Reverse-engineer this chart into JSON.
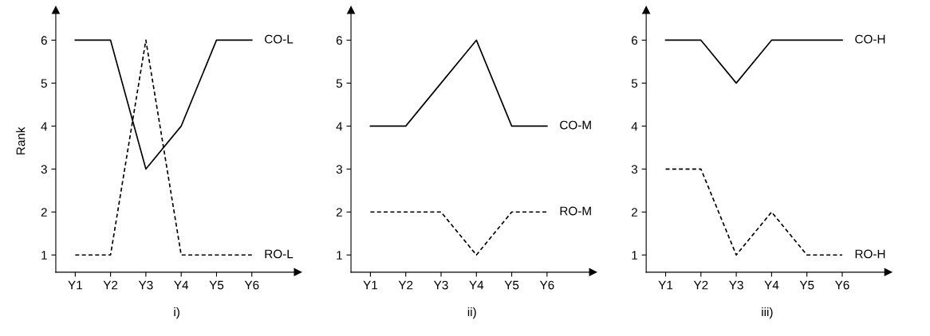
{
  "chart_data": [
    {
      "type": "line",
      "xlabel": "i)",
      "ylabel": "Rank",
      "categories": [
        "Y1",
        "Y2",
        "Y3",
        "Y4",
        "Y5",
        "Y6"
      ],
      "ylim": [
        0.6,
        6.7
      ],
      "yticks": [
        1,
        2,
        3,
        4,
        5,
        6
      ],
      "grid": false,
      "legend": false,
      "marker": "none",
      "series": [
        {
          "name": "CO-L",
          "color": "#000000",
          "line_style": "solid",
          "values": [
            6,
            6,
            3,
            4,
            6,
            6
          ]
        },
        {
          "name": "RO-L",
          "color": "#000000",
          "line_style": "dashed",
          "values": [
            1,
            1,
            6,
            1,
            1,
            1
          ]
        }
      ]
    },
    {
      "type": "line",
      "xlabel": "ii)",
      "categories": [
        "Y1",
        "Y2",
        "Y3",
        "Y4",
        "Y5",
        "Y6"
      ],
      "ylim": [
        0.6,
        6.7
      ],
      "yticks": [
        1,
        2,
        3,
        4,
        5,
        6
      ],
      "grid": false,
      "legend": false,
      "marker": "none",
      "series": [
        {
          "name": "CO-M",
          "color": "#000000",
          "line_style": "solid",
          "values": [
            4,
            4,
            5,
            6,
            4,
            4
          ]
        },
        {
          "name": "RO-M",
          "color": "#000000",
          "line_style": "dashed",
          "values": [
            2,
            2,
            2,
            1,
            2,
            2
          ]
        }
      ]
    },
    {
      "type": "line",
      "xlabel": "iii)",
      "categories": [
        "Y1",
        "Y2",
        "Y3",
        "Y4",
        "Y5",
        "Y6"
      ],
      "ylim": [
        0.6,
        6.7
      ],
      "yticks": [
        1,
        2,
        3,
        4,
        5,
        6
      ],
      "grid": false,
      "legend": false,
      "marker": "none",
      "series": [
        {
          "name": "CO-H",
          "color": "#000000",
          "line_style": "solid",
          "values": [
            6,
            6,
            5,
            6,
            6,
            6
          ]
        },
        {
          "name": "RO-H",
          "color": "#000000",
          "line_style": "dashed",
          "values": [
            3,
            3,
            1,
            2,
            1,
            1
          ]
        }
      ]
    }
  ]
}
